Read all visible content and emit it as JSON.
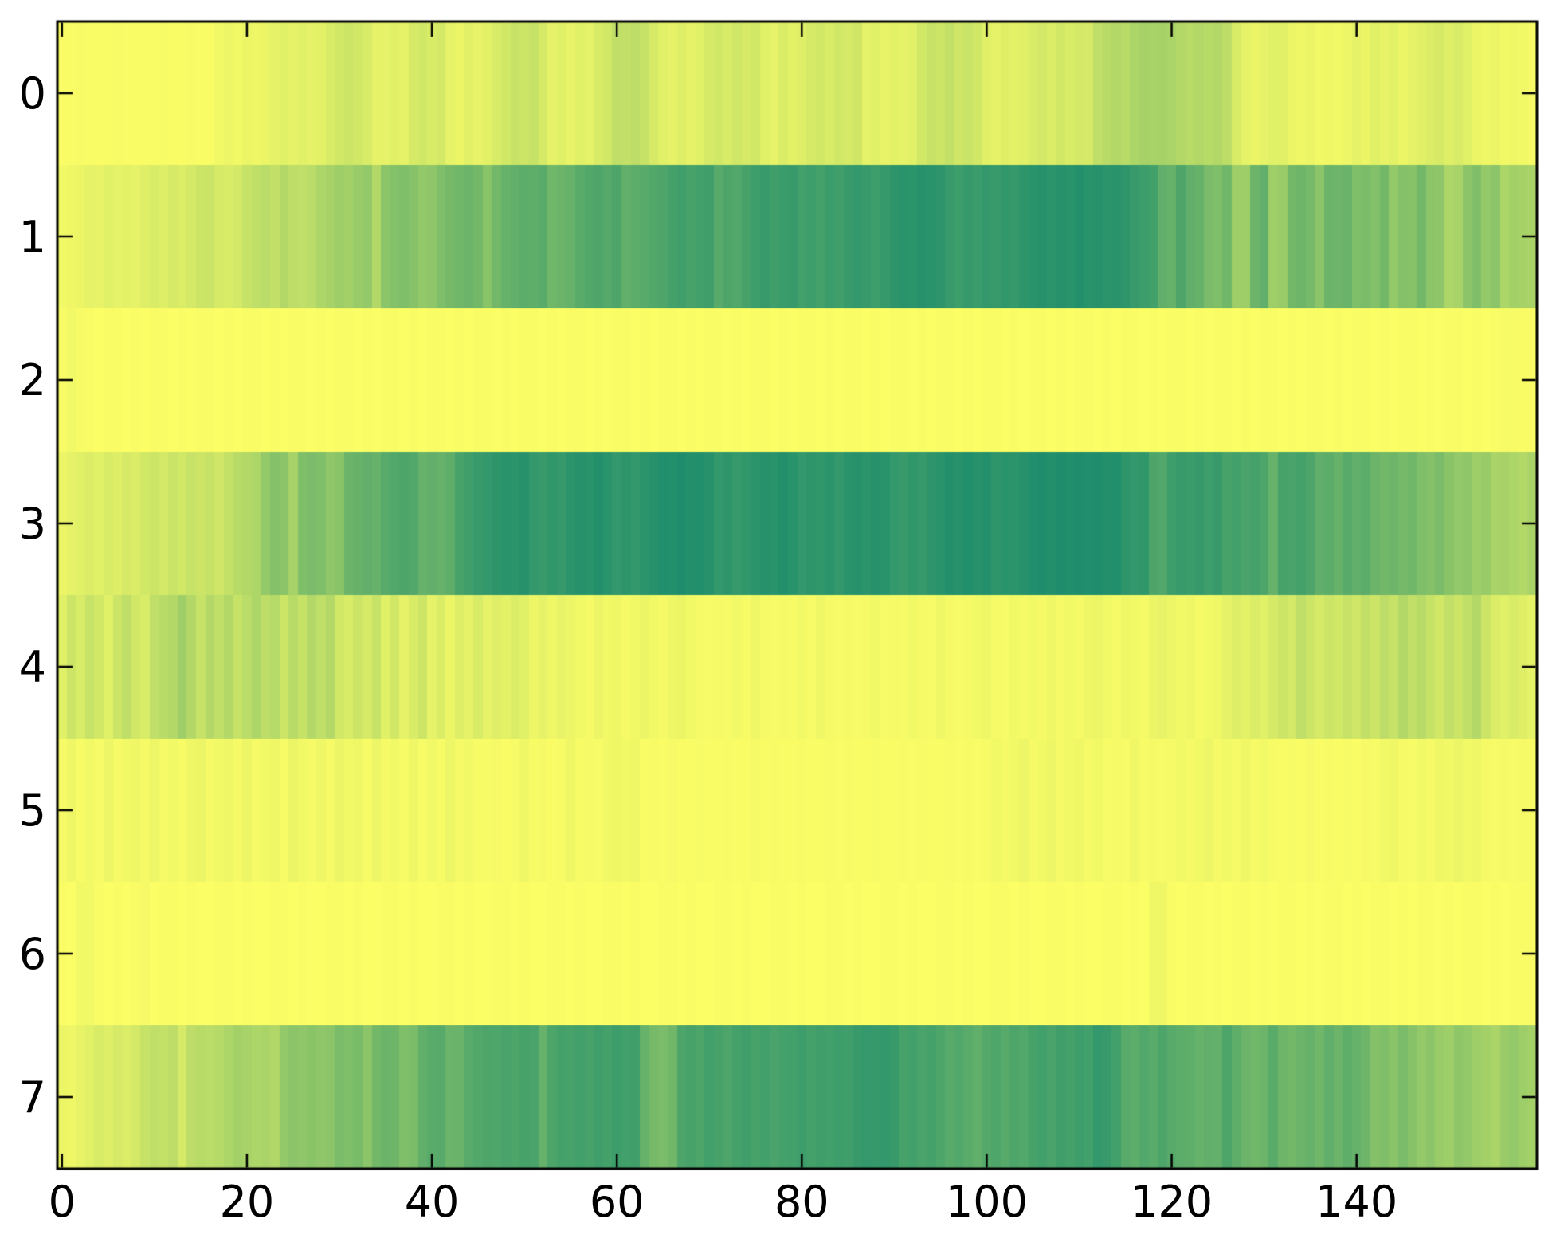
{
  "figure": {
    "title": "",
    "background_color": "#ffffff",
    "spine_color": "#000000",
    "tick_color": "#000000"
  },
  "chart_data": {
    "type": "heatmap",
    "title": "",
    "xlabel": "",
    "ylabel": "",
    "grid": false,
    "legend": null,
    "x_ticks": [
      0,
      20,
      40,
      60,
      80,
      100,
      120,
      140
    ],
    "y_ticks": [
      0,
      1,
      2,
      3,
      4,
      5,
      6,
      7
    ],
    "x_range": [
      -0.5,
      159.5
    ],
    "y_range": [
      -0.5,
      7.5
    ],
    "n_rows": 8,
    "n_cols": 160,
    "colormap": {
      "low_color": "#ffff66",
      "high_color": "#007e6c",
      "value_definition": "0 = bright yellow, 1 = darkest teal-green"
    },
    "values": [
      [
        0.02,
        0.02,
        0.03,
        0.02,
        0.02,
        0.02,
        0.03,
        0.02,
        0.02,
        0.02,
        0.02,
        0.03,
        0.02,
        0.02,
        0.03,
        0.02,
        0.02,
        0.05,
        0.07,
        0.05,
        0.08,
        0.06,
        0.08,
        0.1,
        0.12,
        0.1,
        0.12,
        0.1,
        0.11,
        0.15,
        0.18,
        0.2,
        0.18,
        0.15,
        0.1,
        0.1,
        0.12,
        0.1,
        0.16,
        0.18,
        0.15,
        0.17,
        0.1,
        0.08,
        0.12,
        0.09,
        0.11,
        0.15,
        0.18,
        0.22,
        0.2,
        0.22,
        0.16,
        0.1,
        0.12,
        0.09,
        0.12,
        0.1,
        0.15,
        0.18,
        0.25,
        0.24,
        0.26,
        0.22,
        0.16,
        0.12,
        0.1,
        0.13,
        0.1,
        0.12,
        0.16,
        0.18,
        0.15,
        0.19,
        0.16,
        0.18,
        0.12,
        0.1,
        0.14,
        0.11,
        0.13,
        0.16,
        0.18,
        0.15,
        0.18,
        0.16,
        0.19,
        0.1,
        0.12,
        0.09,
        0.11,
        0.1,
        0.12,
        0.18,
        0.22,
        0.2,
        0.23,
        0.19,
        0.21,
        0.18,
        0.12,
        0.1,
        0.13,
        0.11,
        0.12,
        0.15,
        0.17,
        0.14,
        0.18,
        0.15,
        0.17,
        0.16,
        0.25,
        0.28,
        0.3,
        0.28,
        0.32,
        0.35,
        0.34,
        0.35,
        0.33,
        0.3,
        0.28,
        0.3,
        0.28,
        0.3,
        0.26,
        0.15,
        0.1,
        0.08,
        0.1,
        0.12,
        0.12,
        0.08,
        0.06,
        0.08,
        0.05,
        0.06,
        0.05,
        0.07,
        0.1,
        0.08,
        0.12,
        0.09,
        0.11,
        0.08,
        0.1,
        0.12,
        0.14,
        0.16,
        0.13,
        0.15,
        0.12,
        0.08,
        0.06,
        0.08,
        0.05,
        0.06,
        0.05,
        0.04
      ],
      [
        0.05,
        0.06,
        0.08,
        0.1,
        0.09,
        0.12,
        0.1,
        0.11,
        0.1,
        0.13,
        0.15,
        0.13,
        0.16,
        0.14,
        0.17,
        0.2,
        0.21,
        0.16,
        0.15,
        0.17,
        0.22,
        0.25,
        0.27,
        0.24,
        0.3,
        0.26,
        0.25,
        0.27,
        0.32,
        0.35,
        0.38,
        0.36,
        0.4,
        0.42,
        0.3,
        0.45,
        0.48,
        0.5,
        0.47,
        0.42,
        0.44,
        0.5,
        0.54,
        0.56,
        0.58,
        0.55,
        0.46,
        0.55,
        0.6,
        0.62,
        0.64,
        0.63,
        0.65,
        0.56,
        0.58,
        0.6,
        0.65,
        0.68,
        0.7,
        0.67,
        0.7,
        0.62,
        0.64,
        0.66,
        0.68,
        0.7,
        0.73,
        0.75,
        0.72,
        0.74,
        0.75,
        0.66,
        0.7,
        0.68,
        0.72,
        0.76,
        0.78,
        0.75,
        0.77,
        0.78,
        0.74,
        0.76,
        0.73,
        0.77,
        0.75,
        0.78,
        0.8,
        0.78,
        0.76,
        0.79,
        0.82,
        0.84,
        0.83,
        0.85,
        0.84,
        0.82,
        0.78,
        0.76,
        0.79,
        0.77,
        0.8,
        0.78,
        0.81,
        0.79,
        0.82,
        0.84,
        0.85,
        0.83,
        0.85,
        0.84,
        0.86,
        0.84,
        0.85,
        0.83,
        0.84,
        0.82,
        0.78,
        0.76,
        0.74,
        0.62,
        0.6,
        0.7,
        0.62,
        0.6,
        0.52,
        0.5,
        0.56,
        0.38,
        0.38,
        0.58,
        0.62,
        0.38,
        0.4,
        0.55,
        0.57,
        0.54,
        0.45,
        0.58,
        0.57,
        0.59,
        0.5,
        0.52,
        0.49,
        0.55,
        0.42,
        0.48,
        0.47,
        0.55,
        0.45,
        0.44,
        0.32,
        0.34,
        0.45,
        0.5,
        0.42,
        0.45,
        0.32,
        0.36,
        0.35,
        0.33
      ],
      [
        0.03,
        0.05,
        0.03,
        0.02,
        0.01,
        0.02,
        0.02,
        0.01,
        0.02,
        0.01,
        0.02,
        0.02,
        0.01,
        0.02,
        0.01,
        0.02,
        0.02,
        0.01,
        0.02,
        0.01,
        0.02,
        0.02,
        0.01,
        0.02,
        0.01,
        0.02,
        0.02,
        0.01,
        0.02,
        0.01,
        0.02,
        0.02,
        0.01,
        0.02,
        0.01,
        0.02,
        0.02,
        0.01,
        0.02,
        0.01,
        0.02,
        0.02,
        0.01,
        0.02,
        0.01,
        0.02,
        0.02,
        0.01,
        0.02,
        0.01,
        0.02,
        0.02,
        0.01,
        0.02,
        0.01,
        0.02,
        0.02,
        0.01,
        0.02,
        0.01,
        0.02,
        0.02,
        0.01,
        0.02,
        0.01,
        0.02,
        0.02,
        0.01,
        0.02,
        0.01,
        0.02,
        0.02,
        0.01,
        0.02,
        0.01,
        0.02,
        0.02,
        0.01,
        0.02,
        0.01,
        0.02,
        0.02,
        0.01,
        0.02,
        0.01,
        0.02,
        0.02,
        0.01,
        0.02,
        0.01,
        0.02,
        0.02,
        0.01,
        0.02,
        0.01,
        0.02,
        0.02,
        0.01,
        0.02,
        0.01,
        0.02,
        0.02,
        0.01,
        0.02,
        0.01,
        0.02,
        0.02,
        0.01,
        0.02,
        0.01,
        0.02,
        0.02,
        0.01,
        0.02,
        0.01,
        0.02,
        0.02,
        0.01,
        0.02,
        0.01,
        0.02,
        0.02,
        0.01,
        0.02,
        0.01,
        0.02,
        0.02,
        0.01,
        0.02,
        0.01,
        0.02,
        0.02,
        0.01,
        0.02,
        0.01,
        0.02,
        0.02,
        0.01,
        0.02,
        0.01,
        0.02,
        0.02,
        0.01,
        0.02,
        0.01,
        0.02,
        0.02,
        0.01,
        0.02,
        0.01,
        0.02,
        0.02,
        0.01,
        0.02,
        0.01,
        0.02,
        0.03,
        0.03,
        0.02,
        0.02
      ],
      [
        0.08,
        0.1,
        0.12,
        0.14,
        0.12,
        0.15,
        0.13,
        0.16,
        0.14,
        0.18,
        0.2,
        0.17,
        0.21,
        0.18,
        0.22,
        0.2,
        0.22,
        0.19,
        0.23,
        0.28,
        0.3,
        0.32,
        0.42,
        0.48,
        0.45,
        0.35,
        0.5,
        0.52,
        0.5,
        0.44,
        0.46,
        0.58,
        0.6,
        0.62,
        0.6,
        0.66,
        0.68,
        0.7,
        0.68,
        0.6,
        0.62,
        0.6,
        0.63,
        0.72,
        0.75,
        0.78,
        0.8,
        0.82,
        0.84,
        0.83,
        0.85,
        0.8,
        0.78,
        0.81,
        0.79,
        0.83,
        0.85,
        0.84,
        0.86,
        0.84,
        0.8,
        0.82,
        0.8,
        0.83,
        0.85,
        0.87,
        0.86,
        0.88,
        0.86,
        0.87,
        0.85,
        0.8,
        0.82,
        0.79,
        0.81,
        0.83,
        0.85,
        0.84,
        0.86,
        0.84,
        0.8,
        0.82,
        0.81,
        0.83,
        0.8,
        0.84,
        0.85,
        0.83,
        0.85,
        0.84,
        0.8,
        0.78,
        0.81,
        0.79,
        0.82,
        0.84,
        0.86,
        0.85,
        0.87,
        0.85,
        0.86,
        0.82,
        0.84,
        0.83,
        0.85,
        0.87,
        0.88,
        0.86,
        0.88,
        0.87,
        0.88,
        0.87,
        0.88,
        0.86,
        0.87,
        0.82,
        0.8,
        0.81,
        0.7,
        0.68,
        0.76,
        0.78,
        0.77,
        0.79,
        0.76,
        0.78,
        0.72,
        0.74,
        0.71,
        0.73,
        0.7,
        0.6,
        0.72,
        0.71,
        0.73,
        0.7,
        0.62,
        0.64,
        0.6,
        0.66,
        0.62,
        0.64,
        0.58,
        0.55,
        0.57,
        0.54,
        0.56,
        0.5,
        0.48,
        0.52,
        0.46,
        0.42,
        0.44,
        0.38,
        0.4,
        0.33,
        0.35,
        0.32,
        0.3,
        0.33
      ],
      [
        0.12,
        0.2,
        0.15,
        0.22,
        0.18,
        0.12,
        0.2,
        0.25,
        0.18,
        0.15,
        0.25,
        0.28,
        0.3,
        0.38,
        0.3,
        0.22,
        0.3,
        0.25,
        0.3,
        0.22,
        0.27,
        0.32,
        0.26,
        0.29,
        0.2,
        0.28,
        0.22,
        0.3,
        0.25,
        0.3,
        0.18,
        0.15,
        0.2,
        0.16,
        0.22,
        0.12,
        0.18,
        0.1,
        0.15,
        0.2,
        0.1,
        0.14,
        0.08,
        0.13,
        0.1,
        0.15,
        0.1,
        0.13,
        0.11,
        0.14,
        0.12,
        0.07,
        0.1,
        0.06,
        0.09,
        0.07,
        0.05,
        0.04,
        0.08,
        0.05,
        0.06,
        0.04,
        0.05,
        0.08,
        0.05,
        0.04,
        0.06,
        0.08,
        0.05,
        0.04,
        0.03,
        0.04,
        0.03,
        0.05,
        0.03,
        0.06,
        0.04,
        0.03,
        0.04,
        0.03,
        0.05,
        0.03,
        0.06,
        0.04,
        0.03,
        0.04,
        0.03,
        0.04,
        0.05,
        0.03,
        0.04,
        0.03,
        0.05,
        0.04,
        0.03,
        0.06,
        0.04,
        0.03,
        0.04,
        0.05,
        0.06,
        0.04,
        0.03,
        0.05,
        0.04,
        0.05,
        0.04,
        0.06,
        0.04,
        0.05,
        0.04,
        0.06,
        0.08,
        0.05,
        0.04,
        0.06,
        0.05,
        0.04,
        0.08,
        0.09,
        0.07,
        0.05,
        0.06,
        0.04,
        0.05,
        0.06,
        0.1,
        0.13,
        0.11,
        0.14,
        0.12,
        0.16,
        0.2,
        0.17,
        0.25,
        0.2,
        0.16,
        0.2,
        0.18,
        0.22,
        0.19,
        0.24,
        0.2,
        0.26,
        0.22,
        0.3,
        0.24,
        0.28,
        0.22,
        0.18,
        0.24,
        0.2,
        0.25,
        0.3,
        0.2,
        0.14,
        0.12,
        0.15,
        0.13,
        0.1
      ],
      [
        0.04,
        0.06,
        0.03,
        0.05,
        0.03,
        0.07,
        0.04,
        0.05,
        0.06,
        0.04,
        0.07,
        0.04,
        0.05,
        0.03,
        0.06,
        0.08,
        0.04,
        0.05,
        0.06,
        0.04,
        0.07,
        0.04,
        0.05,
        0.06,
        0.03,
        0.08,
        0.05,
        0.04,
        0.06,
        0.04,
        0.08,
        0.05,
        0.06,
        0.03,
        0.07,
        0.04,
        0.05,
        0.03,
        0.06,
        0.03,
        0.05,
        0.03,
        0.07,
        0.04,
        0.05,
        0.03,
        0.03,
        0.04,
        0.02,
        0.03,
        0.06,
        0.03,
        0.04,
        0.02,
        0.03,
        0.06,
        0.03,
        0.04,
        0.03,
        0.05,
        0.06,
        0.05,
        0.06,
        0.02,
        0.03,
        0.02,
        0.04,
        0.02,
        0.02,
        0.03,
        0.02,
        0.02,
        0.03,
        0.02,
        0.02,
        0.04,
        0.02,
        0.03,
        0.02,
        0.02,
        0.03,
        0.02,
        0.02,
        0.03,
        0.02,
        0.03,
        0.02,
        0.02,
        0.03,
        0.02,
        0.02,
        0.03,
        0.02,
        0.03,
        0.02,
        0.02,
        0.03,
        0.02,
        0.03,
        0.02,
        0.03,
        0.05,
        0.04,
        0.05,
        0.07,
        0.04,
        0.05,
        0.07,
        0.04,
        0.05,
        0.06,
        0.04,
        0.05,
        0.03,
        0.04,
        0.03,
        0.06,
        0.03,
        0.04,
        0.03,
        0.04,
        0.05,
        0.04,
        0.05,
        0.07,
        0.04,
        0.05,
        0.04,
        0.06,
        0.04,
        0.05,
        0.03,
        0.02,
        0.03,
        0.02,
        0.04,
        0.02,
        0.03,
        0.02,
        0.03,
        0.02,
        0.04,
        0.03,
        0.05,
        0.06,
        0.04,
        0.03,
        0.05,
        0.04,
        0.06,
        0.05,
        0.08,
        0.05,
        0.06,
        0.04,
        0.03,
        0.04,
        0.03,
        0.04,
        0.03
      ],
      [
        0.02,
        0.01,
        0.05,
        0.05,
        0.02,
        0.01,
        0.02,
        0.01,
        0.02,
        0.04,
        0.01,
        0.02,
        0.02,
        0.01,
        0.02,
        0.01,
        0.01,
        0.02,
        0.02,
        0.01,
        0.02,
        0.01,
        0.01,
        0.02,
        0.02,
        0.01,
        0.02,
        0.01,
        0.01,
        0.02,
        0.02,
        0.01,
        0.02,
        0.01,
        0.01,
        0.02,
        0.02,
        0.01,
        0.02,
        0.01,
        0.01,
        0.02,
        0.02,
        0.01,
        0.02,
        0.01,
        0.01,
        0.02,
        0.02,
        0.01,
        0.02,
        0.01,
        0.01,
        0.02,
        0.02,
        0.01,
        0.02,
        0.01,
        0.01,
        0.02,
        0.02,
        0.01,
        0.02,
        0.01,
        0.01,
        0.02,
        0.02,
        0.01,
        0.02,
        0.01,
        0.01,
        0.02,
        0.02,
        0.01,
        0.02,
        0.01,
        0.01,
        0.02,
        0.02,
        0.01,
        0.02,
        0.01,
        0.01,
        0.02,
        0.02,
        0.01,
        0.02,
        0.01,
        0.01,
        0.02,
        0.02,
        0.01,
        0.02,
        0.01,
        0.01,
        0.02,
        0.02,
        0.01,
        0.02,
        0.01,
        0.01,
        0.02,
        0.02,
        0.01,
        0.02,
        0.01,
        0.01,
        0.02,
        0.02,
        0.01,
        0.02,
        0.01,
        0.01,
        0.02,
        0.02,
        0.01,
        0.02,
        0.01,
        0.06,
        0.06,
        0.02,
        0.01,
        0.02,
        0.02,
        0.01,
        0.02,
        0.01,
        0.02,
        0.02,
        0.01,
        0.02,
        0.01,
        0.02,
        0.02,
        0.01,
        0.02,
        0.01,
        0.02,
        0.02,
        0.01,
        0.02,
        0.01,
        0.02,
        0.02,
        0.01,
        0.02,
        0.01,
        0.02,
        0.02,
        0.01,
        0.02,
        0.01,
        0.02,
        0.02,
        0.01,
        0.02,
        0.01,
        0.02,
        0.02,
        0.02
      ],
      [
        0.08,
        0.06,
        0.09,
        0.12,
        0.15,
        0.13,
        0.16,
        0.14,
        0.17,
        0.22,
        0.25,
        0.23,
        0.26,
        0.16,
        0.26,
        0.28,
        0.27,
        0.29,
        0.32,
        0.36,
        0.34,
        0.32,
        0.33,
        0.31,
        0.42,
        0.45,
        0.44,
        0.46,
        0.44,
        0.45,
        0.52,
        0.5,
        0.53,
        0.45,
        0.55,
        0.58,
        0.57,
        0.5,
        0.52,
        0.62,
        0.65,
        0.66,
        0.58,
        0.59,
        0.66,
        0.68,
        0.7,
        0.69,
        0.71,
        0.7,
        0.72,
        0.71,
        0.6,
        0.7,
        0.73,
        0.72,
        0.74,
        0.72,
        0.75,
        0.73,
        0.76,
        0.74,
        0.75,
        0.6,
        0.54,
        0.52,
        0.56,
        0.7,
        0.72,
        0.7,
        0.74,
        0.72,
        0.7,
        0.73,
        0.75,
        0.72,
        0.74,
        0.71,
        0.73,
        0.74,
        0.76,
        0.73,
        0.75,
        0.74,
        0.76,
        0.75,
        0.78,
        0.8,
        0.79,
        0.8,
        0.78,
        0.72,
        0.74,
        0.71,
        0.73,
        0.7,
        0.66,
        0.68,
        0.65,
        0.62,
        0.67,
        0.69,
        0.66,
        0.7,
        0.68,
        0.72,
        0.74,
        0.71,
        0.75,
        0.73,
        0.76,
        0.74,
        0.8,
        0.78,
        0.74,
        0.66,
        0.64,
        0.68,
        0.65,
        0.7,
        0.66,
        0.64,
        0.63,
        0.6,
        0.62,
        0.61,
        0.7,
        0.63,
        0.58,
        0.56,
        0.58,
        0.65,
        0.57,
        0.55,
        0.58,
        0.6,
        0.56,
        0.62,
        0.58,
        0.63,
        0.6,
        0.57,
        0.48,
        0.5,
        0.46,
        0.52,
        0.47,
        0.42,
        0.45,
        0.4,
        0.38,
        0.44,
        0.42,
        0.38,
        0.36,
        0.33,
        0.4,
        0.42,
        0.38,
        0.36
      ]
    ]
  }
}
